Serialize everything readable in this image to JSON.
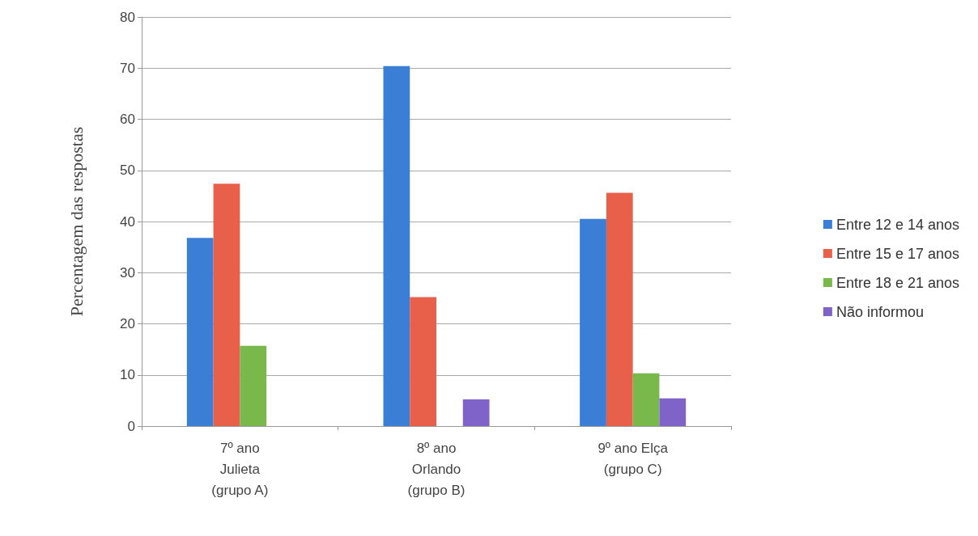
{
  "chart_data": {
    "type": "bar",
    "ylabel": "Percentagem das respostas",
    "categories": [
      "7º ano\nJulieta\n(grupo A)",
      "8º ano\nOrlando\n(grupo B)",
      "9º ano Elça\n(grupo C)"
    ],
    "series": [
      {
        "name": "Entre 12 e 14 anos",
        "color": "#3a7fd5",
        "values": [
          36.8,
          70.4,
          40.5
        ]
      },
      {
        "name": "Entre 15 e 17 anos",
        "color": "#e8604a",
        "values": [
          47.4,
          25.2,
          45.6
        ]
      },
      {
        "name": "Entre 18 e 21 anos",
        "color": "#79b84a",
        "values": [
          15.7,
          0,
          10.3
        ]
      },
      {
        "name": "Não informou",
        "color": "#7f63c8",
        "values": [
          0,
          5.2,
          5.4
        ]
      }
    ],
    "ylim": [
      0,
      80
    ],
    "yticks": [
      0,
      10,
      20,
      30,
      40,
      50,
      60,
      70,
      80
    ],
    "grid": "y",
    "legend": "right"
  }
}
